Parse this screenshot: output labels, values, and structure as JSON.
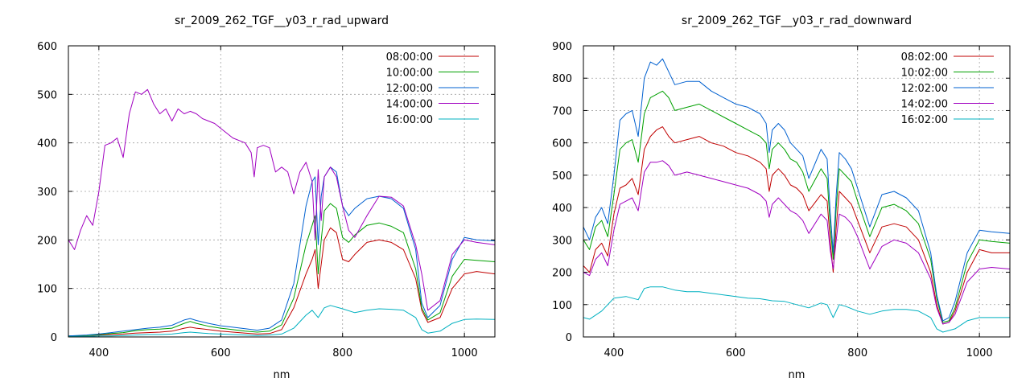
{
  "chart_data": [
    {
      "type": "line",
      "title": "sr_2009_262_TGF__y03_r_rad_upward",
      "xlabel": "nm",
      "ylabel": "",
      "xlim": [
        350,
        1050
      ],
      "ylim": [
        0,
        600
      ],
      "xticks": [
        400,
        600,
        800,
        1000
      ],
      "yticks": [
        0,
        100,
        200,
        300,
        400,
        500,
        600
      ],
      "grid": true,
      "legend": "top-right",
      "series": [
        {
          "name": "08:00:00",
          "color": "#c00000",
          "x": [
            350,
            380,
            400,
            420,
            440,
            460,
            480,
            500,
            520,
            540,
            550,
            560,
            580,
            600,
            620,
            640,
            660,
            680,
            700,
            720,
            740,
            750,
            755,
            760,
            765,
            770,
            780,
            790,
            800,
            810,
            820,
            840,
            860,
            880,
            900,
            920,
            930,
            940,
            960,
            980,
            1000,
            1020,
            1050
          ],
          "y": [
            2,
            3,
            4,
            5,
            6,
            8,
            9,
            10,
            12,
            18,
            20,
            18,
            15,
            12,
            10,
            8,
            6,
            7,
            15,
            60,
            130,
            160,
            180,
            100,
            150,
            200,
            225,
            215,
            160,
            155,
            170,
            195,
            200,
            195,
            180,
            120,
            55,
            30,
            40,
            100,
            130,
            135,
            130
          ]
        },
        {
          "name": "10:00:00",
          "color": "#00a000",
          "x": [
            350,
            380,
            400,
            420,
            440,
            460,
            480,
            500,
            520,
            540,
            550,
            560,
            580,
            600,
            620,
            640,
            660,
            680,
            700,
            720,
            740,
            750,
            755,
            760,
            765,
            770,
            780,
            790,
            800,
            810,
            820,
            840,
            860,
            880,
            900,
            920,
            930,
            940,
            960,
            980,
            1000,
            1020,
            1050
          ],
          "y": [
            2,
            3,
            5,
            7,
            9,
            13,
            15,
            16,
            18,
            28,
            32,
            28,
            22,
            18,
            15,
            12,
            10,
            12,
            25,
            80,
            190,
            230,
            250,
            130,
            200,
            260,
            275,
            265,
            205,
            195,
            210,
            230,
            235,
            228,
            215,
            140,
            60,
            35,
            50,
            125,
            160,
            158,
            155
          ]
        },
        {
          "name": "12:00:00",
          "color": "#0060d0",
          "x": [
            350,
            380,
            400,
            420,
            440,
            460,
            480,
            500,
            520,
            540,
            550,
            560,
            580,
            600,
            620,
            640,
            660,
            680,
            700,
            720,
            740,
            750,
            755,
            760,
            765,
            770,
            780,
            790,
            800,
            810,
            820,
            840,
            860,
            880,
            900,
            920,
            930,
            940,
            960,
            980,
            1000,
            1020,
            1050
          ],
          "y": [
            2,
            4,
            6,
            9,
            12,
            15,
            18,
            20,
            24,
            35,
            38,
            34,
            28,
            23,
            20,
            17,
            14,
            18,
            35,
            110,
            270,
            320,
            330,
            190,
            290,
            330,
            350,
            340,
            270,
            250,
            265,
            285,
            290,
            285,
            265,
            180,
            70,
            40,
            65,
            160,
            205,
            200,
            198
          ]
        },
        {
          "name": "14:00:00",
          "color": "#a000c0",
          "x": [
            350,
            355,
            360,
            370,
            380,
            390,
            400,
            410,
            420,
            430,
            440,
            450,
            460,
            470,
            480,
            490,
            500,
            510,
            520,
            530,
            540,
            550,
            560,
            570,
            580,
            590,
            600,
            620,
            640,
            650,
            655,
            660,
            670,
            680,
            690,
            700,
            710,
            720,
            730,
            740,
            750,
            755,
            760,
            765,
            770,
            780,
            790,
            800,
            810,
            820,
            840,
            860,
            880,
            900,
            920,
            930,
            940,
            960,
            980,
            1000,
            1020,
            1050
          ],
          "y": [
            200,
            190,
            180,
            220,
            250,
            230,
            300,
            395,
            400,
            410,
            370,
            460,
            505,
            500,
            510,
            480,
            460,
            470,
            445,
            470,
            460,
            465,
            460,
            450,
            445,
            440,
            430,
            410,
            400,
            380,
            330,
            390,
            395,
            390,
            340,
            350,
            340,
            295,
            340,
            360,
            320,
            200,
            345,
            240,
            330,
            350,
            330,
            270,
            220,
            205,
            250,
            290,
            288,
            270,
            190,
            130,
            55,
            75,
            170,
            200,
            195,
            190
          ]
        },
        {
          "name": "16:00:00",
          "color": "#00b0c0",
          "x": [
            350,
            380,
            400,
            420,
            440,
            460,
            480,
            500,
            520,
            540,
            550,
            560,
            580,
            600,
            620,
            640,
            660,
            680,
            700,
            720,
            740,
            750,
            760,
            770,
            780,
            800,
            820,
            840,
            860,
            880,
            900,
            920,
            930,
            940,
            960,
            980,
            1000,
            1020,
            1050
          ],
          "y": [
            1,
            1,
            2,
            2,
            3,
            4,
            5,
            5,
            6,
            9,
            10,
            9,
            7,
            6,
            5,
            4,
            3,
            4,
            6,
            18,
            45,
            55,
            40,
            60,
            65,
            58,
            50,
            55,
            58,
            57,
            55,
            40,
            15,
            8,
            12,
            28,
            36,
            37,
            36
          ]
        }
      ]
    },
    {
      "type": "line",
      "title": "sr_2009_262_TGF__y03_r_rad_downward",
      "xlabel": "nm",
      "ylabel": "",
      "xlim": [
        350,
        1050
      ],
      "ylim": [
        0,
        900
      ],
      "xticks": [
        400,
        600,
        800,
        1000
      ],
      "yticks": [
        0,
        100,
        200,
        300,
        400,
        500,
        600,
        700,
        800,
        900
      ],
      "grid": true,
      "legend": "top-right",
      "series": [
        {
          "name": "08:02:00",
          "color": "#c00000",
          "x": [
            350,
            360,
            370,
            380,
            390,
            400,
            410,
            420,
            430,
            440,
            450,
            460,
            470,
            480,
            490,
            500,
            520,
            540,
            560,
            580,
            600,
            620,
            640,
            650,
            655,
            660,
            670,
            680,
            690,
            700,
            710,
            720,
            740,
            750,
            755,
            760,
            765,
            770,
            780,
            790,
            800,
            820,
            840,
            860,
            880,
            900,
            920,
            930,
            940,
            950,
            960,
            980,
            1000,
            1020,
            1050
          ],
          "y": [
            220,
            200,
            270,
            290,
            250,
            380,
            460,
            470,
            490,
            440,
            580,
            620,
            640,
            650,
            620,
            600,
            610,
            620,
            600,
            590,
            570,
            560,
            540,
            520,
            450,
            500,
            520,
            500,
            470,
            460,
            440,
            390,
            440,
            420,
            300,
            200,
            340,
            450,
            430,
            410,
            360,
            260,
            340,
            350,
            340,
            300,
            200,
            100,
            40,
            45,
            80,
            200,
            270,
            260,
            260
          ]
        },
        {
          "name": "10:02:00",
          "color": "#00a000",
          "x": [
            350,
            360,
            370,
            380,
            390,
            400,
            410,
            420,
            430,
            440,
            450,
            460,
            470,
            480,
            490,
            500,
            520,
            540,
            560,
            580,
            600,
            620,
            640,
            650,
            655,
            660,
            670,
            680,
            690,
            700,
            710,
            720,
            740,
            750,
            755,
            760,
            765,
            770,
            780,
            790,
            800,
            820,
            840,
            860,
            880,
            900,
            920,
            930,
            940,
            950,
            960,
            980,
            1000,
            1020,
            1050
          ],
          "y": [
            300,
            270,
            340,
            360,
            310,
            440,
            580,
            600,
            610,
            540,
            690,
            740,
            750,
            760,
            740,
            700,
            710,
            720,
            700,
            680,
            660,
            640,
            620,
            600,
            520,
            580,
            600,
            580,
            550,
            540,
            510,
            450,
            520,
            490,
            350,
            240,
            400,
            520,
            500,
            480,
            420,
            310,
            400,
            410,
            390,
            350,
            240,
            120,
            45,
            50,
            90,
            230,
            300,
            295,
            290
          ]
        },
        {
          "name": "12:02:00",
          "color": "#0060d0",
          "x": [
            350,
            360,
            370,
            380,
            390,
            400,
            410,
            420,
            430,
            440,
            450,
            460,
            470,
            480,
            490,
            500,
            520,
            540,
            560,
            580,
            600,
            620,
            640,
            650,
            655,
            660,
            670,
            680,
            690,
            700,
            710,
            720,
            740,
            750,
            755,
            760,
            765,
            770,
            780,
            790,
            800,
            820,
            840,
            860,
            880,
            900,
            920,
            930,
            940,
            950,
            960,
            980,
            1000,
            1020,
            1050
          ],
          "y": [
            340,
            300,
            370,
            400,
            350,
            500,
            670,
            690,
            700,
            620,
            800,
            850,
            840,
            860,
            820,
            780,
            790,
            790,
            760,
            740,
            720,
            710,
            690,
            660,
            570,
            640,
            660,
            640,
            600,
            580,
            560,
            490,
            580,
            550,
            390,
            260,
            440,
            570,
            550,
            520,
            460,
            340,
            440,
            450,
            430,
            390,
            260,
            130,
            50,
            60,
            110,
            260,
            330,
            325,
            320
          ]
        },
        {
          "name": "14:02:00",
          "color": "#a000c0",
          "x": [
            350,
            360,
            370,
            380,
            390,
            400,
            410,
            420,
            430,
            440,
            450,
            460,
            470,
            480,
            490,
            500,
            520,
            540,
            560,
            580,
            600,
            620,
            640,
            650,
            655,
            660,
            670,
            680,
            690,
            700,
            710,
            720,
            740,
            750,
            755,
            760,
            765,
            770,
            780,
            790,
            800,
            820,
            840,
            860,
            880,
            900,
            920,
            930,
            940,
            950,
            960,
            980,
            1000,
            1020,
            1050
          ],
          "y": [
            200,
            190,
            240,
            260,
            220,
            330,
            410,
            420,
            430,
            390,
            510,
            540,
            540,
            545,
            530,
            500,
            510,
            500,
            490,
            480,
            470,
            460,
            440,
            420,
            370,
            410,
            430,
            410,
            390,
            380,
            360,
            320,
            380,
            360,
            270,
            210,
            300,
            380,
            370,
            350,
            310,
            210,
            280,
            300,
            290,
            260,
            180,
            90,
            40,
            45,
            70,
            170,
            210,
            215,
            210
          ]
        },
        {
          "name": "16:02:00",
          "color": "#00b0c0",
          "x": [
            350,
            360,
            380,
            400,
            420,
            440,
            450,
            460,
            480,
            500,
            520,
            540,
            560,
            580,
            600,
            620,
            640,
            650,
            660,
            680,
            700,
            720,
            740,
            750,
            760,
            770,
            780,
            800,
            820,
            840,
            860,
            880,
            900,
            920,
            930,
            940,
            960,
            980,
            1000,
            1020,
            1050
          ],
          "y": [
            60,
            55,
            80,
            120,
            125,
            115,
            150,
            155,
            155,
            145,
            140,
            140,
            135,
            130,
            125,
            120,
            118,
            115,
            112,
            110,
            100,
            90,
            105,
            100,
            60,
            100,
            95,
            80,
            70,
            80,
            85,
            85,
            80,
            60,
            25,
            15,
            25,
            50,
            60,
            60,
            60
          ]
        }
      ]
    }
  ]
}
